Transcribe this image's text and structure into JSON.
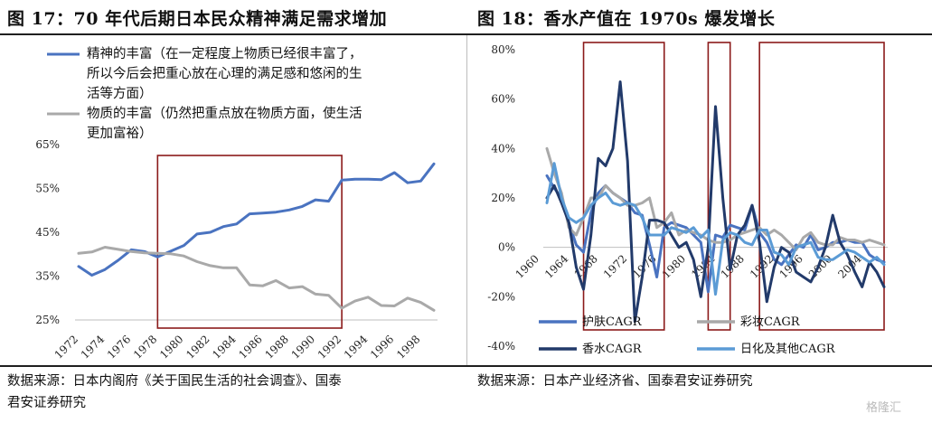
{
  "left": {
    "title": "图 17：70 年代后期日本民众精神满足需求增加",
    "source_line1": "数据来源：日本内阁府《关于国民生活的社会调查》、国泰",
    "source_line2": "君安证券研究"
  },
  "right": {
    "title": "图 18：香水产值在 1970s 爆发增长",
    "source_line1": "数据来源：日本产业经济省、国泰君安证券研究"
  },
  "watermark": "格隆汇",
  "colors": {
    "blue": "#4a73c0",
    "gray": "#a9a9a9",
    "navy": "#223a6a",
    "light_blue": "#5b9bd5",
    "box": "#8b1a1a"
  },
  "chart_data": [
    {
      "type": "line",
      "x": [
        1972,
        1973,
        1974,
        1975,
        1976,
        1977,
        1978,
        1979,
        1980,
        1981,
        1982,
        1983,
        1984,
        1985,
        1986,
        1987,
        1988,
        1989,
        1990,
        1991,
        1992,
        1993,
        1994,
        1995,
        1996,
        1997,
        1998,
        1999
      ],
      "x_tick_labels": [
        "1972",
        "1974",
        "1976",
        "1978",
        "1980",
        "1982",
        "1984",
        "1986",
        "1988",
        "1990",
        "1992",
        "1994",
        "1996",
        "1998"
      ],
      "y_tick_labels": [
        "25%",
        "35%",
        "45%",
        "55%",
        "65%"
      ],
      "ylim": [
        25,
        65
      ],
      "grid": false,
      "legend_position": "top-left",
      "series": [
        {
          "name_lines": [
            "精神的丰富（在一定程度上物质已经很丰富了，",
            "所以今后会把重心放在心理的满足感和悠闲的生",
            "活等方面）"
          ],
          "color_key": "blue",
          "values": [
            37.2,
            35.2,
            36.5,
            38.6,
            41.0,
            40.6,
            39.4,
            40.7,
            42.0,
            44.6,
            45.0,
            46.3,
            46.9,
            49.2,
            49.4,
            49.6,
            50.1,
            50.9,
            52.4,
            52.1,
            56.9,
            57.1,
            57.1,
            57.0,
            58.6,
            56.3,
            56.7,
            60.6
          ]
        },
        {
          "name_lines": [
            "物质的丰富（仍然把重点放在物质方面，使生活",
            "更加富裕）"
          ],
          "color_key": "gray",
          "values": [
            40.2,
            40.5,
            41.6,
            41.1,
            40.6,
            40.3,
            40.2,
            40.1,
            39.6,
            38.3,
            37.4,
            36.9,
            36.9,
            33.0,
            32.8,
            34.0,
            32.3,
            32.6,
            30.9,
            30.6,
            27.7,
            29.3,
            30.2,
            28.3,
            28.2,
            30.0,
            29.0,
            27.2
          ]
        }
      ],
      "highlight_boxes": [
        [
          1978,
          1992
        ]
      ]
    },
    {
      "type": "line",
      "x": [
        1961,
        1962,
        1963,
        1964,
        1965,
        1966,
        1967,
        1968,
        1969,
        1970,
        1971,
        1972,
        1973,
        1974,
        1975,
        1976,
        1977,
        1978,
        1979,
        1980,
        1981,
        1982,
        1983,
        1984,
        1985,
        1986,
        1987,
        1988,
        1989,
        1990,
        1991,
        1992,
        1993,
        1994,
        1995,
        1996,
        1997,
        1998,
        1999,
        2000,
        2001,
        2002,
        2003,
        2004,
        2005,
        2006,
        2007
      ],
      "x_tick_labels": [
        "1960",
        "1964",
        "1968",
        "1972",
        "1976",
        "1980",
        "1984",
        "1988",
        "1992",
        "1996",
        "2000",
        "2004"
      ],
      "y_tick_labels": [
        "-40%",
        "-20%",
        "0%",
        "20%",
        "40%",
        "60%",
        "80%"
      ],
      "ylim": [
        -40,
        80
      ],
      "grid": false,
      "legend_position": "bottom",
      "series": [
        {
          "name": "护肤CAGR",
          "color_key": "blue",
          "values": [
            29,
            24,
            20,
            10,
            1,
            -2,
            14,
            22,
            25,
            22,
            20,
            18,
            14,
            13,
            1,
            -12,
            8,
            10,
            9,
            8,
            5,
            2,
            -18,
            5,
            4,
            9,
            8,
            7,
            17,
            6,
            2,
            -5,
            -7,
            -3,
            1,
            0,
            5,
            -1,
            0,
            2,
            2,
            3,
            2,
            2,
            -3,
            -5,
            -6
          ]
        },
        {
          "name": "彩妆CAGR",
          "color_key": "gray",
          "values": [
            40,
            30,
            22,
            8,
            5,
            12,
            20,
            20,
            25,
            22,
            20,
            17,
            17,
            18,
            20,
            8,
            10,
            14,
            5,
            7,
            6,
            5,
            3,
            2,
            2,
            3,
            5,
            6,
            7,
            8,
            5,
            7,
            5,
            2,
            -1,
            4,
            6,
            2,
            1,
            1,
            4,
            3,
            3,
            2,
            3,
            2,
            1
          ]
        },
        {
          "name": "香水CAGR",
          "color_key": "navy",
          "values": [
            20,
            25,
            18,
            10,
            -8,
            -17,
            5,
            36,
            33,
            40,
            67,
            35,
            -30,
            -12,
            11,
            11,
            10,
            5,
            0,
            2,
            -5,
            -20,
            0,
            57,
            20,
            -9,
            5,
            9,
            17,
            2,
            -22,
            -8,
            0,
            -2,
            -10,
            -12,
            -14,
            -8,
            0,
            13,
            2,
            -3,
            -10,
            -16,
            -6,
            -10,
            -16
          ]
        },
        {
          "name": "日化及其他CAGR",
          "color_key": "light_blue",
          "values": [
            18,
            34,
            20,
            12,
            10,
            12,
            17,
            20,
            22,
            18,
            17,
            18,
            17,
            12,
            5,
            5,
            5,
            8,
            7,
            6,
            8,
            4,
            7,
            -19,
            3,
            6,
            5,
            2,
            1,
            7,
            7,
            -2,
            -3,
            -7,
            0,
            1,
            2,
            -4,
            -5,
            -5,
            -3,
            -1,
            -2,
            -4,
            -6,
            -4,
            -7
          ]
        }
      ],
      "highlight_boxes": [
        [
          1966,
          1977
        ],
        [
          1983,
          1986
        ],
        [
          1990,
          2007
        ]
      ]
    }
  ]
}
